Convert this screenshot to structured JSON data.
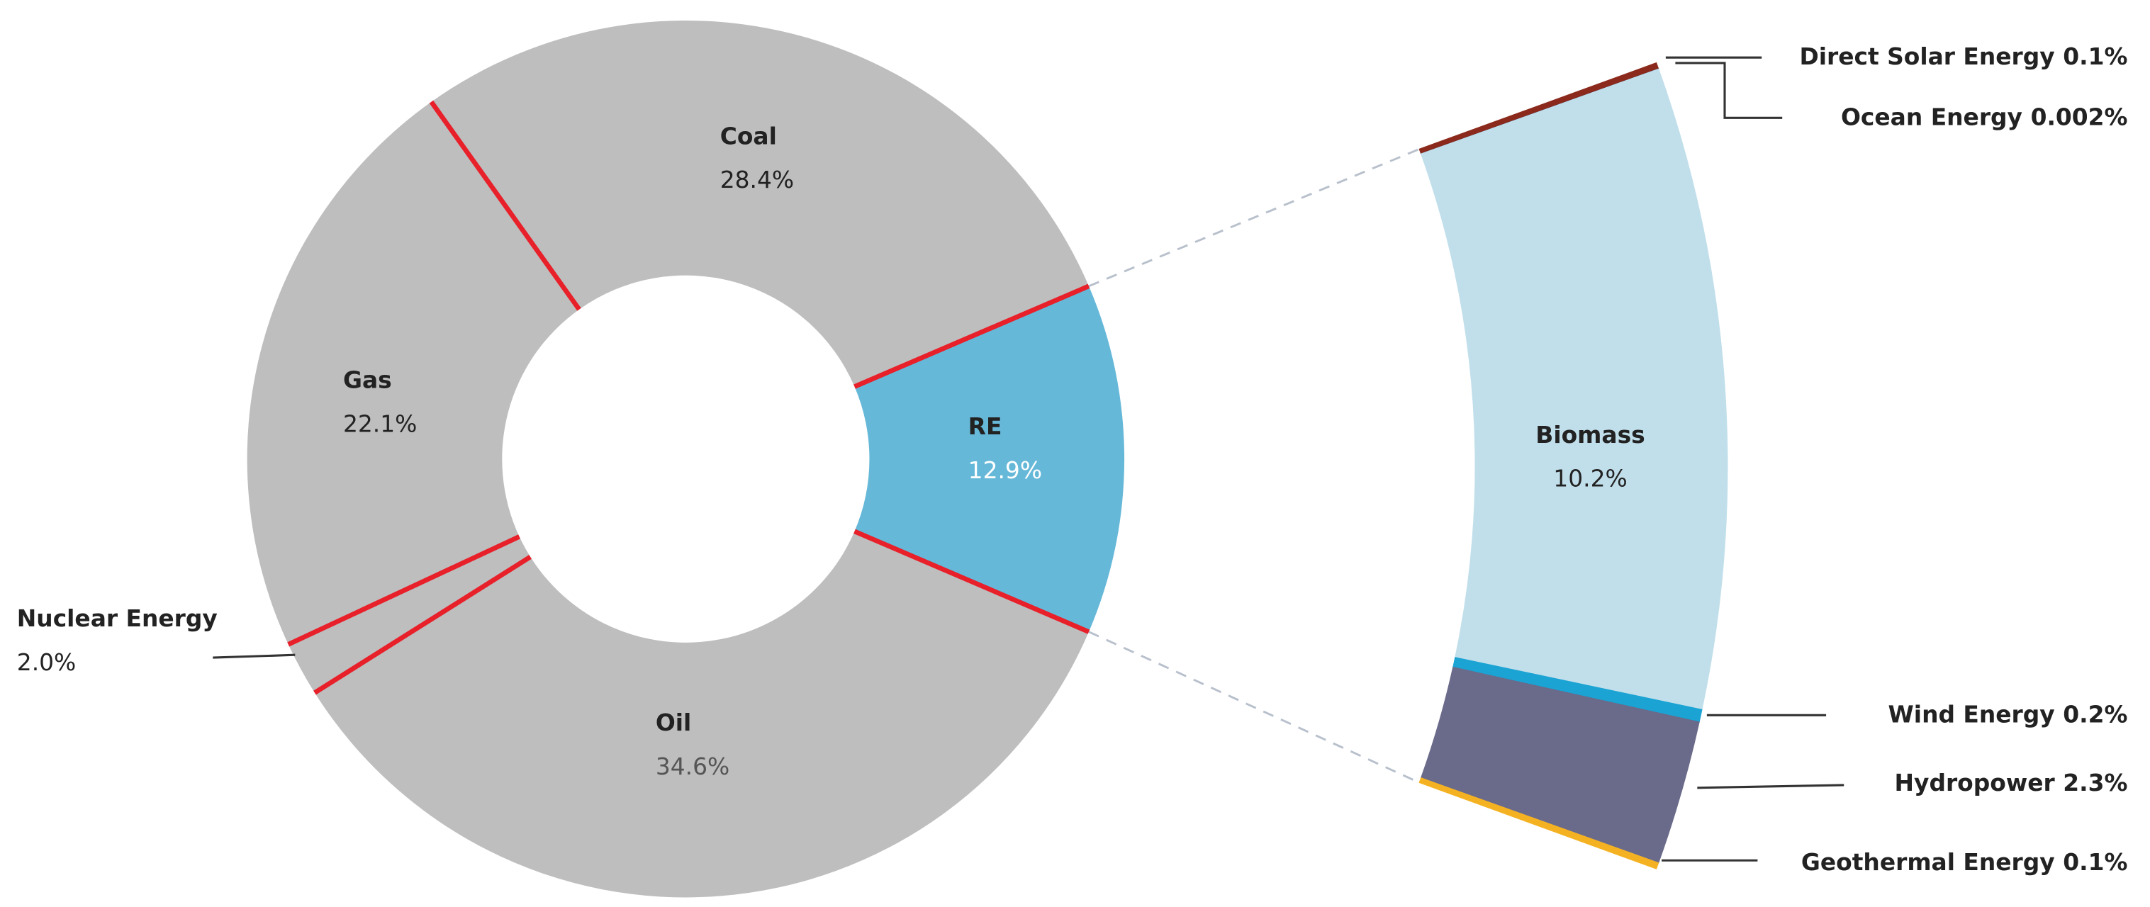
{
  "chart_data": [
    {
      "type": "donut",
      "categories": [
        "RE",
        "Oil",
        "Nuclear Energy",
        "Gas",
        "Coal"
      ],
      "values": [
        12.9,
        34.6,
        2.0,
        22.1,
        28.4
      ],
      "value_labels": [
        "12.9%",
        "34.6%",
        "2.0%",
        "22.1%",
        "28.4%"
      ],
      "colors": [
        "#66b8d9",
        "#bebebe",
        "#bebebe",
        "#bebebe",
        "#bebebe"
      ],
      "separator_color": "#e8202a"
    },
    {
      "type": "sector",
      "categories": [
        "Direct Solar Energy",
        "Ocean Energy",
        "Biomass",
        "Wind Energy",
        "Hydropower",
        "Geothermal Energy"
      ],
      "values": [
        0.1,
        0.002,
        10.2,
        0.2,
        2.3,
        0.1
      ],
      "value_labels": [
        "0.1%",
        "0.002%",
        "10.2%",
        "0.2%",
        "2.3%",
        "0.1%"
      ],
      "colors": [
        "#8b2a1c",
        "#3a2a5a",
        "#c1dfeb",
        "#1ba3d3",
        "#6a6a8a",
        "#f4b223"
      ]
    }
  ]
}
